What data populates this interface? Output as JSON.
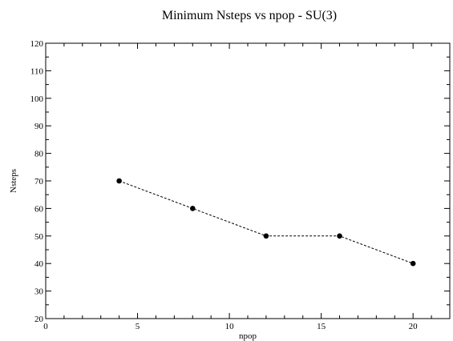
{
  "chart_data": {
    "type": "line",
    "title": "Minimum Nsteps vs npop - SU(3)",
    "xlabel": "npop",
    "ylabel": "Nsteps",
    "xlim": [
      0,
      22
    ],
    "ylim": [
      20,
      120
    ],
    "x_ticks": [
      0,
      5,
      10,
      15,
      20
    ],
    "y_ticks": [
      20,
      30,
      40,
      50,
      60,
      70,
      80,
      90,
      100,
      110,
      120
    ],
    "x_tick_labels": [
      "0",
      "5",
      "10",
      "15",
      "20"
    ],
    "y_tick_labels": [
      "20",
      "30",
      "40",
      "50",
      "60",
      "70",
      "80",
      "90",
      "100",
      "110",
      "120"
    ],
    "grid": false,
    "legend": "none",
    "series": [
      {
        "x": [
          4,
          8,
          12,
          16,
          20
        ],
        "values": [
          70,
          60,
          50,
          50,
          40
        ],
        "line_style": "dashed",
        "marker": "circle",
        "color": "#000000"
      }
    ]
  }
}
